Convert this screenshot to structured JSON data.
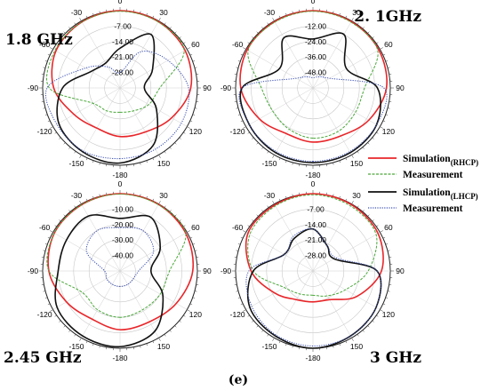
{
  "caption": "(e)",
  "legend": [
    {
      "label": "Simulation",
      "sub": "(RHCP)",
      "color": "#e8262a",
      "dash": "solid"
    },
    {
      "label": "Measurement",
      "sub": "",
      "color": "#4aa83a",
      "dash": "dashed"
    },
    {
      "label": "Simulation",
      "sub": "(LHCP)",
      "color": "#111111",
      "dash": "solid"
    },
    {
      "label": "Measurement",
      "sub": "",
      "color": "#3a4fb0",
      "dash": "dotted"
    }
  ],
  "chart_data": [
    {
      "type": "polar",
      "title": "1.8 GHz",
      "angle_ticks": [
        "0",
        "30",
        "60",
        "90",
        "120",
        "150",
        "-180",
        "-150",
        "-120",
        "-90",
        "-60",
        "-30"
      ],
      "radial_ticks": [
        "-7.00",
        "-14.00",
        "-21.00",
        "-28.00"
      ],
      "rlim": [
        -35,
        0
      ],
      "series": [
        {
          "key": "sim_rhcp",
          "theta": [
            -180,
            -150,
            -120,
            -90,
            -60,
            -30,
            0,
            30,
            60,
            90,
            120,
            150
          ],
          "r_db": [
            -13,
            -14,
            -11,
            -5,
            -1.5,
            -0.5,
            0,
            -0.3,
            -1,
            -3,
            -8,
            -12
          ]
        },
        {
          "key": "meas_rhcp",
          "theta": [
            -180,
            -150,
            -120,
            -90,
            -60,
            -30,
            0,
            30,
            60,
            90,
            120,
            150
          ],
          "r_db": [
            -24,
            -23,
            -21,
            -3,
            -1,
            -0.5,
            -0.3,
            -0.5,
            -1.5,
            -17,
            -20,
            -23
          ]
        },
        {
          "key": "sim_lhcp",
          "theta": [
            -180,
            -150,
            -120,
            -90,
            -60,
            -30,
            0,
            30,
            60,
            90,
            120,
            150
          ],
          "r_db": [
            -1,
            -1.5,
            -3,
            -9,
            -20,
            -22,
            -17,
            -7,
            -18,
            -24,
            -16,
            -5
          ]
        },
        {
          "key": "meas_lhcp",
          "theta": [
            -180,
            -150,
            -120,
            -90,
            -60,
            -30,
            0,
            30,
            60,
            90,
            120,
            150
          ],
          "r_db": [
            -3,
            -2,
            -2,
            -2,
            -17,
            -24,
            -28,
            -16,
            -10,
            -4,
            -3,
            -3
          ]
        }
      ]
    },
    {
      "type": "polar",
      "title": "2. 1GHz",
      "angle_ticks": [
        "0",
        "30",
        "60",
        "90",
        "120",
        "150",
        "-180",
        "-150",
        "-120",
        "-90",
        "-60",
        "-30"
      ],
      "radial_ticks": [
        "-12.00",
        "-24.00",
        "-36.00",
        "-48.00"
      ],
      "rlim": [
        -60,
        0
      ],
      "series": [
        {
          "key": "sim_rhcp",
          "theta": [
            -180,
            -150,
            -120,
            -90,
            -60,
            -30,
            0,
            30,
            60,
            90,
            120,
            150
          ],
          "r_db": [
            -18,
            -19,
            -12,
            -4,
            -1,
            -0.5,
            0,
            -0.5,
            -1,
            -3,
            -10,
            -17
          ]
        },
        {
          "key": "meas_rhcp",
          "theta": [
            -180,
            -150,
            -120,
            -90,
            -60,
            -30,
            0,
            30,
            60,
            90,
            120,
            150
          ],
          "r_db": [
            -21,
            -23,
            -24,
            -20,
            -2,
            -1,
            -0.5,
            -1,
            -2,
            -20,
            -22,
            -21
          ]
        },
        {
          "key": "sim_lhcp",
          "theta": [
            -180,
            -150,
            -120,
            -90,
            -60,
            -30,
            0,
            30,
            60,
            90,
            120,
            150
          ],
          "r_db": [
            -2,
            -2,
            -3,
            -5,
            -30,
            -15,
            -22,
            -12,
            -30,
            -10,
            -3,
            -2
          ]
        },
        {
          "key": "meas_lhcp",
          "theta": [
            -180,
            -150,
            -120,
            -90,
            -60,
            -30,
            0,
            30,
            60,
            90,
            120,
            150
          ],
          "r_db": [
            -3,
            -3,
            -3,
            -5,
            -45,
            -50,
            -52,
            -50,
            -45,
            -5,
            -3,
            -3
          ]
        }
      ]
    },
    {
      "type": "polar",
      "title": "2.45 GHz",
      "angle_ticks": [
        "0",
        "30",
        "60",
        "90",
        "120",
        "150",
        "-180",
        "-150",
        "-120",
        "-90",
        "-60",
        "-30"
      ],
      "radial_ticks": [
        "-10.00",
        "-20.00",
        "-30.00",
        "-40.00"
      ],
      "rlim": [
        -50,
        0
      ],
      "series": [
        {
          "key": "sim_rhcp",
          "theta": [
            -180,
            -150,
            -120,
            -90,
            -60,
            -30,
            0,
            30,
            60,
            90,
            120,
            150
          ],
          "r_db": [
            -12,
            -14,
            -10,
            -4,
            -1,
            -0.5,
            0,
            -0.3,
            -1,
            -3,
            -8,
            -12
          ]
        },
        {
          "key": "meas_rhcp",
          "theta": [
            -180,
            -150,
            -120,
            -90,
            -60,
            -30,
            0,
            30,
            60,
            90,
            120,
            150
          ],
          "r_db": [
            -20,
            -21,
            -22,
            -4,
            -1,
            -0.5,
            -0.3,
            -0.5,
            -1,
            -18,
            -20,
            -21
          ]
        },
        {
          "key": "sim_lhcp",
          "theta": [
            -180,
            -150,
            -120,
            -90,
            -60,
            -30,
            0,
            30,
            60,
            90,
            120,
            150
          ],
          "r_db": [
            -1,
            -1.5,
            -3,
            -10,
            -10,
            -9,
            -16,
            -10,
            -20,
            -30,
            -18,
            -5
          ]
        },
        {
          "key": "meas_lhcp",
          "theta": [
            -180,
            -150,
            -120,
            -90,
            -60,
            -30,
            0,
            30,
            60,
            90,
            120,
            150
          ],
          "r_db": [
            -40,
            -40,
            -40,
            -40,
            -25,
            -20,
            -22,
            -20,
            -25,
            -38,
            -40,
            -40
          ]
        }
      ]
    },
    {
      "type": "polar",
      "title": "3 GHz",
      "angle_ticks": [
        "0",
        "30",
        "60",
        "90",
        "120",
        "150",
        "-180",
        "-150",
        "-120",
        "-90",
        "-60",
        "-30"
      ],
      "radial_ticks": [
        "-7.00",
        "-14.00",
        "-21.00",
        "-28.00"
      ],
      "rlim": [
        -35,
        0
      ],
      "series": [
        {
          "key": "sim_rhcp",
          "theta": [
            -180,
            -150,
            -120,
            -90,
            -60,
            -30,
            0,
            30,
            60,
            90,
            120,
            150
          ],
          "r_db": [
            -21,
            -20,
            -15,
            -7,
            -1,
            -0.5,
            0,
            -0.3,
            -1,
            -4,
            -12,
            -20
          ]
        },
        {
          "key": "meas_rhcp",
          "theta": [
            -180,
            -150,
            -120,
            -90,
            -60,
            -30,
            0,
            30,
            60,
            90,
            120,
            150
          ],
          "r_db": [
            -24,
            -23,
            -20,
            -8,
            -2,
            -1,
            -0.5,
            -1,
            -2,
            -10,
            -18,
            -22
          ]
        },
        {
          "key": "sim_lhcp",
          "theta": [
            -180,
            -150,
            -120,
            -90,
            -60,
            -30,
            0,
            30,
            60,
            90,
            120,
            150
          ],
          "r_db": [
            0,
            -1,
            -2,
            -8,
            -20,
            -18,
            -16,
            -22,
            -24,
            -6,
            -2,
            -1
          ]
        },
        {
          "key": "meas_lhcp",
          "theta": [
            -180,
            -150,
            -120,
            -90,
            -60,
            -30,
            0,
            30,
            60,
            90,
            120,
            150
          ],
          "r_db": [
            -1,
            -1.5,
            -3,
            -6,
            -20,
            -17,
            -16,
            -22,
            -23,
            -6,
            -2,
            -1
          ]
        }
      ]
    }
  ]
}
